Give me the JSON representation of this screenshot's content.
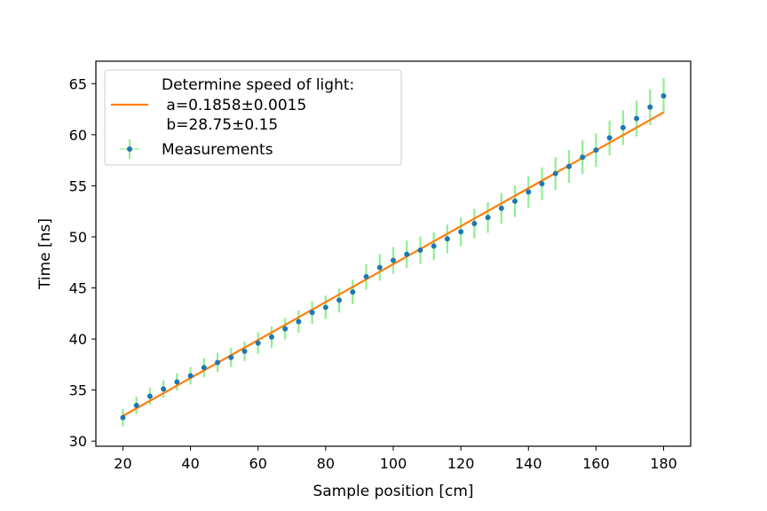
{
  "chart_data": {
    "type": "scatter",
    "title": "",
    "xlabel": "Sample position [cm]",
    "ylabel": "Time [ns]",
    "xlim": [
      12,
      188
    ],
    "ylim": [
      29.5,
      67.2
    ],
    "xticks": [
      20,
      40,
      60,
      80,
      100,
      120,
      140,
      160,
      180
    ],
    "yticks": [
      30,
      35,
      40,
      45,
      50,
      55,
      60,
      65
    ],
    "grid": false,
    "legend_position": "top-left",
    "fit": {
      "name": "Determine speed of light:\n a=0.1858±0.0015\n b=28.75±0.15",
      "legend_lines": [
        "Determine speed of light:",
        " a=0.1858±0.0015",
        " b=28.75±0.15"
      ],
      "a": 0.1858,
      "b": 28.75,
      "x_range": [
        20,
        180
      ],
      "color": "#ff7f0e"
    },
    "series": [
      {
        "name": "Measurements",
        "marker_color": "#1f77b4",
        "errorbar_color": "#90ee90",
        "x": [
          20,
          24,
          28,
          32,
          36,
          40,
          44,
          48,
          52,
          56,
          60,
          64,
          68,
          72,
          76,
          80,
          84,
          88,
          92,
          96,
          100,
          104,
          108,
          112,
          116,
          120,
          124,
          128,
          132,
          136,
          140,
          144,
          148,
          152,
          156,
          160,
          164,
          168,
          172,
          176,
          180
        ],
        "y": [
          32.3,
          33.5,
          34.4,
          35.1,
          35.8,
          36.4,
          37.2,
          37.7,
          38.2,
          38.8,
          39.6,
          40.2,
          41.0,
          41.7,
          42.6,
          43.1,
          43.8,
          44.6,
          46.1,
          47.0,
          47.7,
          48.3,
          48.7,
          49.1,
          49.8,
          50.5,
          51.3,
          51.9,
          52.8,
          53.5,
          54.4,
          55.2,
          56.2,
          56.9,
          57.8,
          58.5,
          59.7,
          60.7,
          61.6,
          62.7,
          63.8
        ],
        "yerr": [
          0.85,
          0.85,
          0.85,
          0.85,
          0.85,
          0.85,
          0.95,
          0.95,
          0.95,
          0.95,
          1.05,
          1.05,
          1.05,
          1.1,
          1.1,
          1.15,
          1.2,
          1.2,
          1.25,
          1.3,
          1.3,
          1.35,
          1.35,
          1.35,
          1.4,
          1.4,
          1.45,
          1.5,
          1.5,
          1.55,
          1.55,
          1.6,
          1.6,
          1.6,
          1.65,
          1.65,
          1.7,
          1.7,
          1.75,
          1.75,
          1.75
        ]
      }
    ]
  }
}
